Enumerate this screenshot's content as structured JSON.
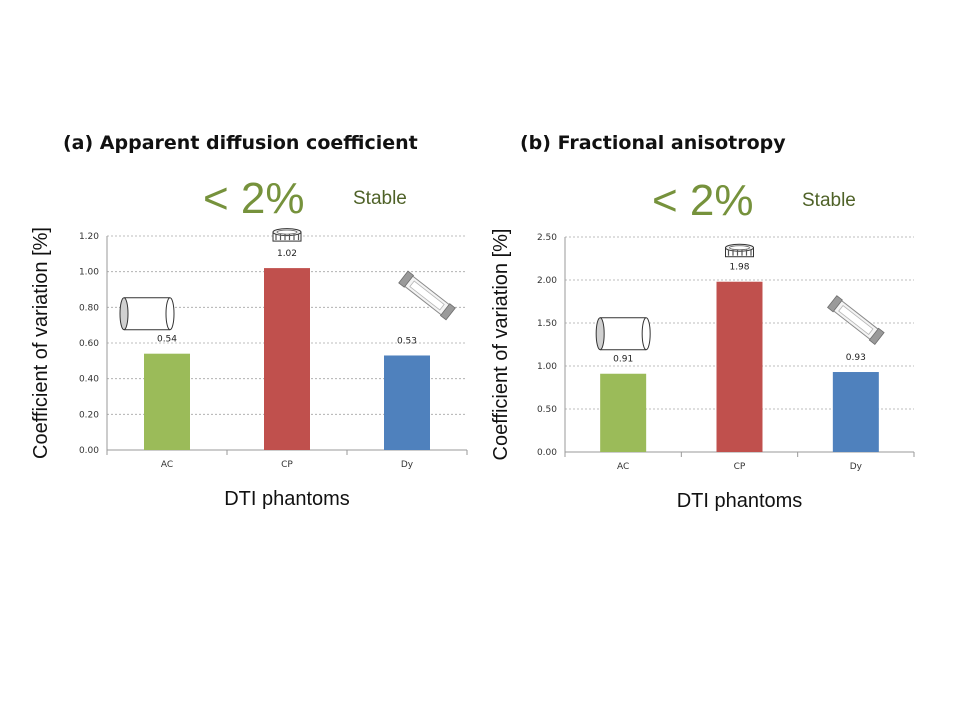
{
  "colors": {
    "green": "#9bbb59",
    "red": "#c0504d",
    "blue": "#4f81bd",
    "note": "#76923c",
    "stable": "#4f6228"
  },
  "icons": {
    "AC": "cylinder-icon",
    "CP": "coil-icon",
    "Dy": "tube-icon"
  },
  "chart_data": [
    {
      "type": "bar",
      "panel_title": "(a) Apparent diffusion coefficient",
      "note": "< 2%",
      "note2": "Stable",
      "categories": [
        "AC",
        "CP",
        "Dy"
      ],
      "values": [
        0.54,
        1.02,
        0.53
      ],
      "value_labels": [
        "0.54",
        "1.02",
        "0.53"
      ],
      "ylim": [
        0,
        1.2
      ],
      "yticks": [
        "0.00",
        "0.20",
        "0.40",
        "0.60",
        "0.80",
        "1.00",
        "1.20"
      ],
      "xlabel": "DTI phantoms",
      "ylabel": "Coefficient of variation [%]",
      "grid": true
    },
    {
      "type": "bar",
      "panel_title": "(b) Fractional anisotropy",
      "note": "< 2%",
      "note2": "Stable",
      "categories": [
        "AC",
        "CP",
        "Dy"
      ],
      "values": [
        0.91,
        1.98,
        0.93
      ],
      "value_labels": [
        "0.91",
        "1.98",
        "0.93"
      ],
      "ylim": [
        0,
        2.5
      ],
      "yticks": [
        "0.00",
        "0.50",
        "1.00",
        "1.50",
        "2.00",
        "2.50"
      ],
      "xlabel": "DTI phantoms",
      "ylabel": "Coefficient of variation [%]",
      "grid": true
    }
  ]
}
